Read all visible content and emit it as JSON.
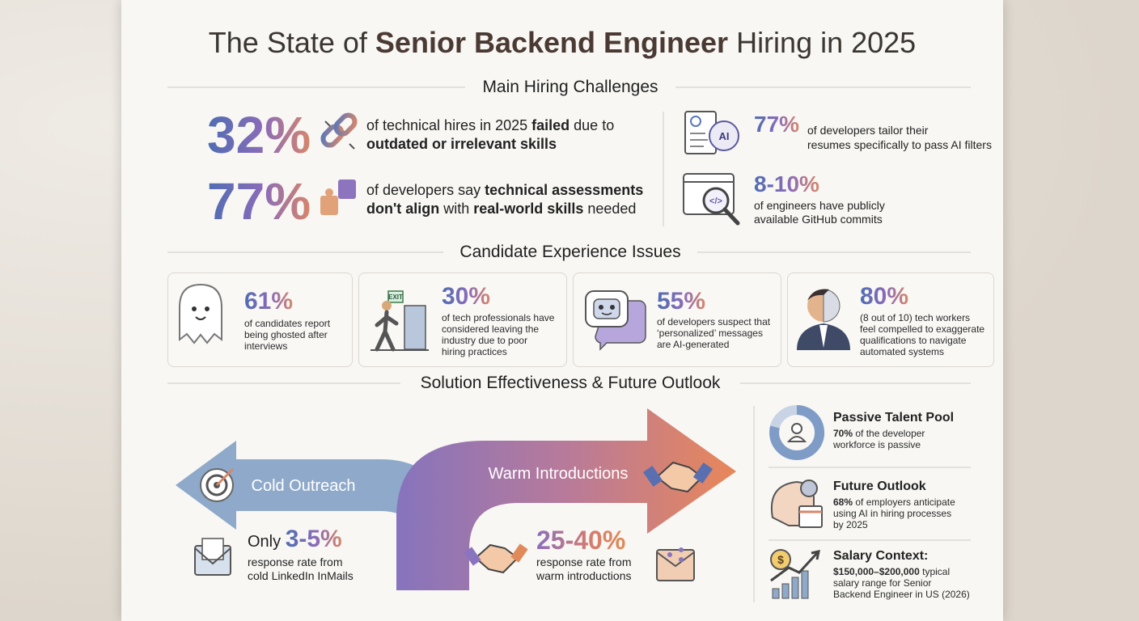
{
  "title": {
    "lead": "The State of ",
    "emphasis": "Senior Backend Engineer",
    "tail": " Hiring in 2025"
  },
  "main_challenges": {
    "heading": "Main Hiring Challenges",
    "stats": [
      {
        "value": "32%",
        "lines": [
          [
            {
              "text": "of technical hires in 2025 "
            },
            {
              "text": "failed",
              "bold": true
            },
            {
              "text": " due to"
            }
          ],
          [
            {
              "text": "outdated or irrelevant skills",
              "bold": true
            }
          ]
        ]
      },
      {
        "value": "77%",
        "lines": [
          [
            {
              "text": "of developers say "
            },
            {
              "text": "technical assessments",
              "bold": true
            }
          ],
          [
            {
              "text": "don't align",
              "bold": true
            },
            {
              "text": " with "
            },
            {
              "text": "real-world skills",
              "bold": true
            },
            {
              "text": " needed"
            }
          ]
        ]
      }
    ],
    "side_stats": [
      {
        "value": "77%",
        "icon_label": "AI",
        "lines": [
          "of developers tailor their",
          "resumes specifically to pass AI filters"
        ]
      },
      {
        "value": "8-10%",
        "icon_label": "</>",
        "lines": [
          "of engineers have publicly",
          "available GitHub commits"
        ]
      }
    ]
  },
  "candidate_experience": {
    "heading": "Candidate Experience Issues",
    "cards": [
      {
        "value": "61%",
        "lines": [
          "of candidates report",
          "being ghosted after",
          "interviews"
        ]
      },
      {
        "value": "30%",
        "sign": "EXIT",
        "lines": [
          "of tech professionals have",
          "considered leaving the",
          "industry due to poor",
          "hiring practices"
        ]
      },
      {
        "value": "55%",
        "lines": [
          "of developers suspect that",
          "‘personalized’ messages",
          "are AI-generated"
        ]
      },
      {
        "value": "80%",
        "lines": [
          "(8 out of 10) tech workers",
          "feel compelled to exaggerate",
          "qualifications to navigate",
          "automated systems"
        ]
      }
    ]
  },
  "solutions": {
    "heading": "Solution Effectiveness & Future Outlook",
    "cold": {
      "label": "Cold Outreach",
      "prefix": "Only ",
      "value": "3-5%",
      "lines": [
        "response rate from",
        "cold LinkedIn InMails"
      ]
    },
    "warm": {
      "label": "Warm Introductions",
      "value": "25-40%",
      "lines": [
        "response rate from",
        "warm introductions"
      ]
    },
    "outlook": [
      {
        "title": "Passive Talent Pool",
        "lines": [
          [
            {
              "text": "70%",
              "bold": true
            },
            " of the developer"
          ],
          "workforce is passive"
        ]
      },
      {
        "title": "Future Outlook",
        "lines": [
          [
            {
              "text": "68%",
              "bold": true
            },
            " of employers anticipate"
          ],
          "using AI in hiring processes",
          "by 2025"
        ]
      },
      {
        "title": "Salary Context:",
        "icon_label": "$",
        "lines": [
          [
            {
              "text": "$150,000–$200,000",
              "bold": true
            },
            " typical"
          ],
          "salary range for Senior",
          "Backend Engineer in US (2026)"
        ]
      }
    ]
  }
}
